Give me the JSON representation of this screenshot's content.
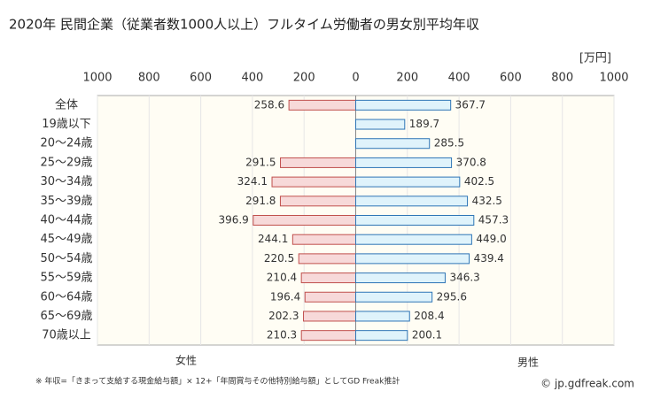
{
  "chart_data": {
    "type": "butterfly",
    "title": "2020年 民間企業（従業者数1000人以上）フルタイム労働者の男女別平均年収",
    "unit_label": "[万円]",
    "categories": [
      "全体",
      "19歳以下",
      "20～24歳",
      "25～29歳",
      "30～34歳",
      "35～39歳",
      "40～44歳",
      "45～49歳",
      "50～54歳",
      "55～59歳",
      "60～64歳",
      "65～69歳",
      "70歳以上"
    ],
    "series": [
      {
        "name": "女性",
        "side": "left",
        "color": "#f7d9d9",
        "stroke": "#c0504d",
        "label_color": "#c0504d",
        "values": [
          258.6,
          null,
          null,
          291.5,
          324.1,
          291.8,
          396.9,
          244.1,
          220.5,
          210.4,
          196.4,
          202.3,
          210.3
        ],
        "value_labels": [
          "258.6",
          null,
          null,
          "291.5",
          "324.1",
          "291.8",
          "396.9",
          "244.1",
          "220.5",
          "210.4",
          "196.4",
          "202.3",
          "210.3"
        ]
      },
      {
        "name": "男性",
        "side": "right",
        "color": "#dff3fb",
        "stroke": "#2e75b6",
        "label_color": "#2e75b6",
        "values": [
          367.7,
          189.7,
          285.5,
          370.8,
          402.5,
          432.5,
          457.3,
          449.0,
          439.4,
          346.3,
          295.6,
          208.4,
          200.1
        ],
        "value_labels": [
          "367.7",
          "189.7",
          "285.5",
          "370.8",
          "402.5",
          "432.5",
          "457.3",
          "449.0",
          "439.4",
          "346.3",
          "295.6",
          "208.4",
          "200.1"
        ]
      }
    ],
    "xlim": [
      -1000,
      1000
    ],
    "xticks": [
      {
        "value": -1000,
        "label": "1000"
      },
      {
        "value": -800,
        "label": "800"
      },
      {
        "value": -600,
        "label": "600"
      },
      {
        "value": -400,
        "label": "400"
      },
      {
        "value": -200,
        "label": "200"
      },
      0,
      200,
      400,
      600,
      800,
      1000
    ],
    "grid": true,
    "footnote": "※ 年収=「きまって支給する現金給与額」× 12+「年間賞与その他特別給与額」としてGD Freak推計",
    "credit": "© jp.gdfreak.com"
  }
}
